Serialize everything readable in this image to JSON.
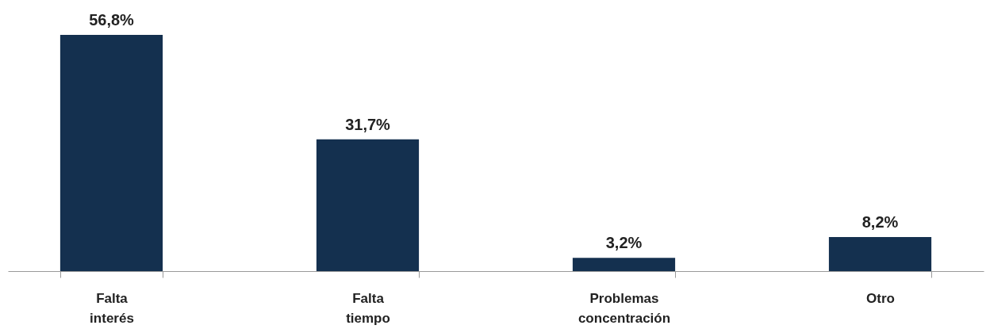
{
  "chart_data": {
    "type": "bar",
    "categories": [
      "Falta interés",
      "Falta tiempo",
      "Problemas concentración",
      "Otro"
    ],
    "values": [
      56.8,
      31.7,
      3.2,
      8.2
    ],
    "color": "#14304f",
    "value_labels": [
      "56,8%",
      "31,7%",
      "3,2%",
      "8,2%"
    ],
    "grid": false
  }
}
